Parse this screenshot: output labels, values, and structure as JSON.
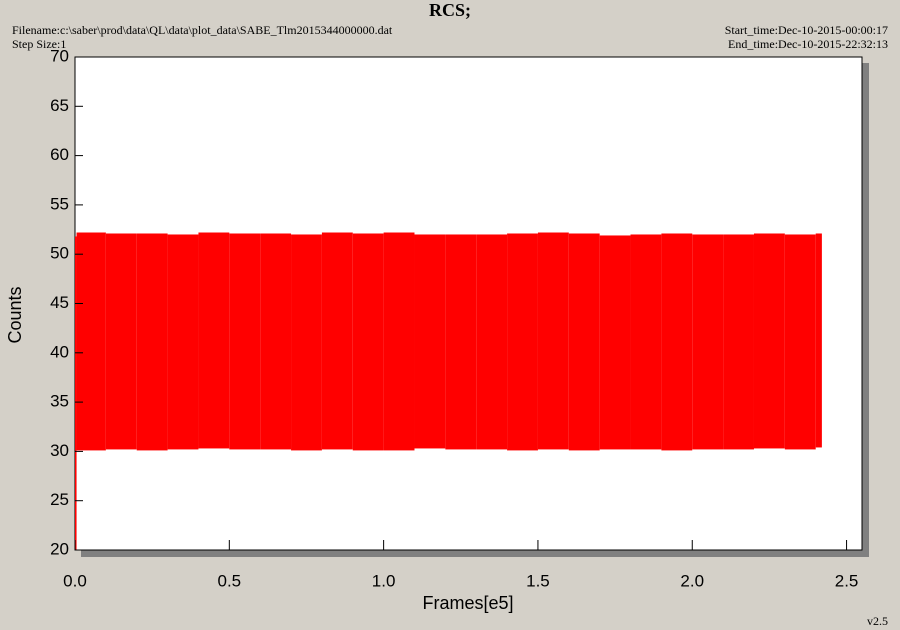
{
  "chart_data": {
    "type": "band",
    "title": "RCS;",
    "filename": "Filename:c:\\saber\\prod\\data\\QL\\data\\plot_data\\SABE_Tlm2015344000000.dat",
    "step_size": "Step Size:1",
    "start_time": "Start_time:Dec-10-2015-00:00:17",
    "end_time": "End_time:Dec-10-2015-22:32:13",
    "version": "v2.5",
    "x_label": "Frames[e5]",
    "y_label": "Counts",
    "color": "#ff0000",
    "bins": [
      0,
      0.005,
      0.1,
      0.2,
      0.3,
      0.4,
      0.5,
      0.6,
      0.7,
      0.8,
      0.9,
      1.0,
      1.1,
      1.2,
      1.3,
      1.4,
      1.5,
      1.6,
      1.7,
      1.8,
      1.9,
      2.0,
      2.1,
      2.2,
      2.3,
      2.4,
      2.42
    ],
    "highs": [
      51.8,
      52.2,
      52.1,
      52.1,
      52.0,
      52.2,
      52.1,
      52.1,
      52.0,
      52.2,
      52.1,
      52.2,
      52.0,
      52.0,
      52.0,
      52.1,
      52.2,
      52.1,
      51.9,
      52.0,
      52.1,
      52.0,
      52.0,
      52.1,
      52.0,
      52.1
    ],
    "lows": [
      20,
      30.1,
      30.2,
      30.1,
      30.2,
      30.3,
      30.2,
      30.2,
      30.1,
      30.2,
      30.1,
      30.1,
      30.3,
      30.2,
      30.2,
      30.1,
      30.2,
      30.1,
      30.2,
      30.2,
      30.1,
      30.2,
      30.2,
      30.3,
      30.2,
      30.4
    ],
    "xlim": [
      0,
      2.55
    ],
    "ylim": [
      20,
      70
    ],
    "xticks": [
      {
        "value": 0,
        "label": "0.0"
      },
      0.5,
      {
        "value": 1,
        "label": "1.0"
      },
      1.5,
      {
        "value": 2,
        "label": "2.0"
      },
      2.5
    ],
    "yticks": [
      20,
      25,
      30,
      35,
      40,
      45,
      50,
      55,
      60,
      65,
      70
    ]
  }
}
